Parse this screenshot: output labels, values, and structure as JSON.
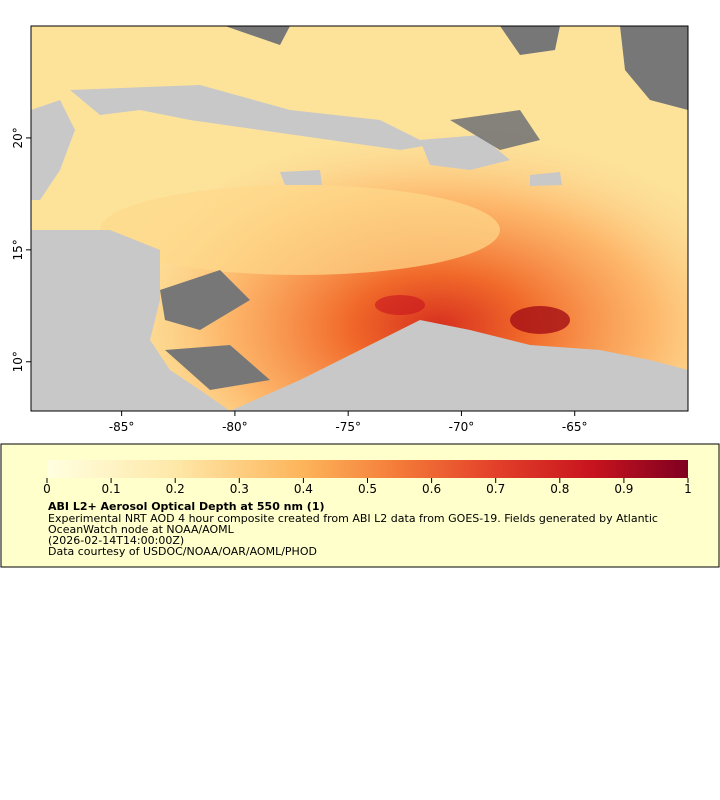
{
  "map": {
    "xlim": [
      -89,
      -60
    ],
    "ylim": [
      7.8,
      25
    ],
    "xticks": [
      {
        "value": -85,
        "label": "-85°"
      },
      {
        "value": -80,
        "label": "-80°"
      },
      {
        "value": -75,
        "label": "-75°"
      },
      {
        "value": -70,
        "label": "-70°"
      },
      {
        "value": -65,
        "label": "-65°"
      }
    ],
    "yticks": [
      {
        "value": 10,
        "label": "10°"
      },
      {
        "value": 15,
        "label": "15°"
      },
      {
        "value": 20,
        "label": "20°"
      }
    ]
  },
  "colorbar": {
    "lim": [
      0,
      1
    ],
    "ticks": [
      0,
      0.1,
      0.2,
      0.3,
      0.4,
      0.5,
      0.6,
      0.7,
      0.8,
      0.9,
      1
    ]
  },
  "legend": {
    "title": "ABI L2+ Aerosol Optical Depth at 550 nm (1)",
    "lines": [
      "Experimental NRT AOD 4 hour composite created from ABI L2 data from GOES-19. Fields generated by Atlantic",
      "OceanWatch node at NOAA/AOML",
      "(2026-02-14T14:00:00Z)",
      "Data courtesy of USDOC/NOAA/OAR/AOML/PHOD"
    ]
  }
}
